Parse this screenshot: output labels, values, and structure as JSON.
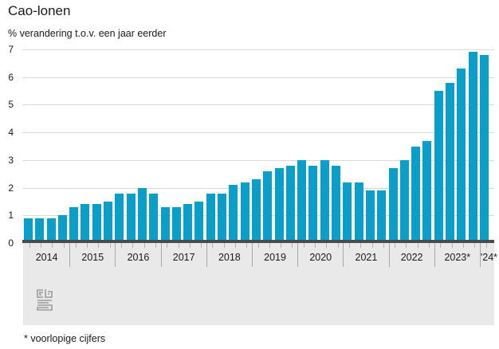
{
  "title": "Cao-lonen",
  "subtitle": "% verandering t.o.v. een jaar eerder",
  "footnote": "* voorlopige cijfers",
  "icons": {
    "footer_logo": "cbs-logo"
  },
  "colors": {
    "bar": "#0a9fc9",
    "axis_baseline": "#4b4b4b",
    "gridline": "#d9d9d9",
    "band_background": "#e9e9e9",
    "text": "#1a1a1a"
  },
  "chart_data": {
    "type": "bar",
    "title": "Cao-lonen",
    "subtitle": "% verandering t.o.v. een jaar eerder",
    "unit": "%",
    "xlabel": "",
    "ylabel": "% verandering t.o.v. een jaar eerder",
    "ylim": [
      0,
      7
    ],
    "yticks": [
      0,
      1,
      2,
      3,
      4,
      5,
      6,
      7
    ],
    "grid": true,
    "legend": false,
    "period": "quarterly",
    "groups": [
      {
        "label": "2014",
        "values": [
          0.9,
          0.9,
          0.9,
          1.0
        ]
      },
      {
        "label": "2015",
        "values": [
          1.3,
          1.4,
          1.4,
          1.5
        ]
      },
      {
        "label": "2016",
        "values": [
          1.8,
          1.8,
          2.0,
          1.8
        ]
      },
      {
        "label": "2017",
        "values": [
          1.3,
          1.3,
          1.4,
          1.5
        ]
      },
      {
        "label": "2018",
        "values": [
          1.8,
          1.8,
          2.1,
          2.2
        ]
      },
      {
        "label": "2019",
        "values": [
          2.3,
          2.6,
          2.7,
          2.8
        ]
      },
      {
        "label": "2020",
        "values": [
          3.0,
          2.8,
          3.0,
          2.8
        ]
      },
      {
        "label": "2021",
        "values": [
          2.2,
          2.2,
          1.9,
          1.9
        ]
      },
      {
        "label": "2022",
        "values": [
          2.7,
          3.0,
          3.5,
          3.7
        ]
      },
      {
        "label": "2023*",
        "values": [
          5.5,
          5.8,
          6.3,
          6.9
        ]
      },
      {
        "label": "'24*",
        "values": [
          6.8
        ]
      }
    ]
  }
}
